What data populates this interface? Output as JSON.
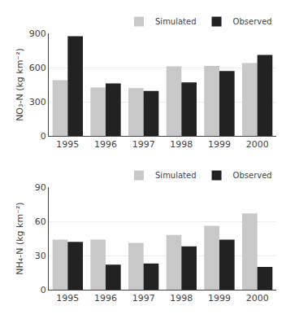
{
  "chart_data": [
    {
      "type": "bar",
      "categories": [
        "1995",
        "1996",
        "1997",
        "1998",
        "1999",
        "2000"
      ],
      "series": [
        {
          "name": "Simulated",
          "color": "#c8c8c8",
          "values": [
            490,
            425,
            420,
            610,
            615,
            640
          ]
        },
        {
          "name": "Observed",
          "color": "#222222",
          "values": [
            875,
            460,
            395,
            470,
            570,
            710
          ]
        }
      ],
      "y_label": "NO₃-N (kg km⁻²)",
      "ylim": [
        0,
        900
      ],
      "yticks": [
        0,
        300,
        600,
        900
      ],
      "grid": true,
      "legend": "upper right"
    },
    {
      "type": "bar",
      "categories": [
        "1995",
        "1996",
        "1997",
        "1998",
        "1999",
        "2000"
      ],
      "series": [
        {
          "name": "Simulated",
          "color": "#c8c8c8",
          "values": [
            44,
            44,
            41,
            48,
            56,
            67
          ]
        },
        {
          "name": "Observed",
          "color": "#222222",
          "values": [
            42,
            22,
            23,
            38,
            44,
            20
          ]
        }
      ],
      "y_label": "NH₄-N (kg km⁻²)",
      "ylim": [
        0,
        90
      ],
      "yticks": [
        0,
        30,
        60,
        90
      ],
      "grid": true,
      "legend": "upper right"
    }
  ]
}
